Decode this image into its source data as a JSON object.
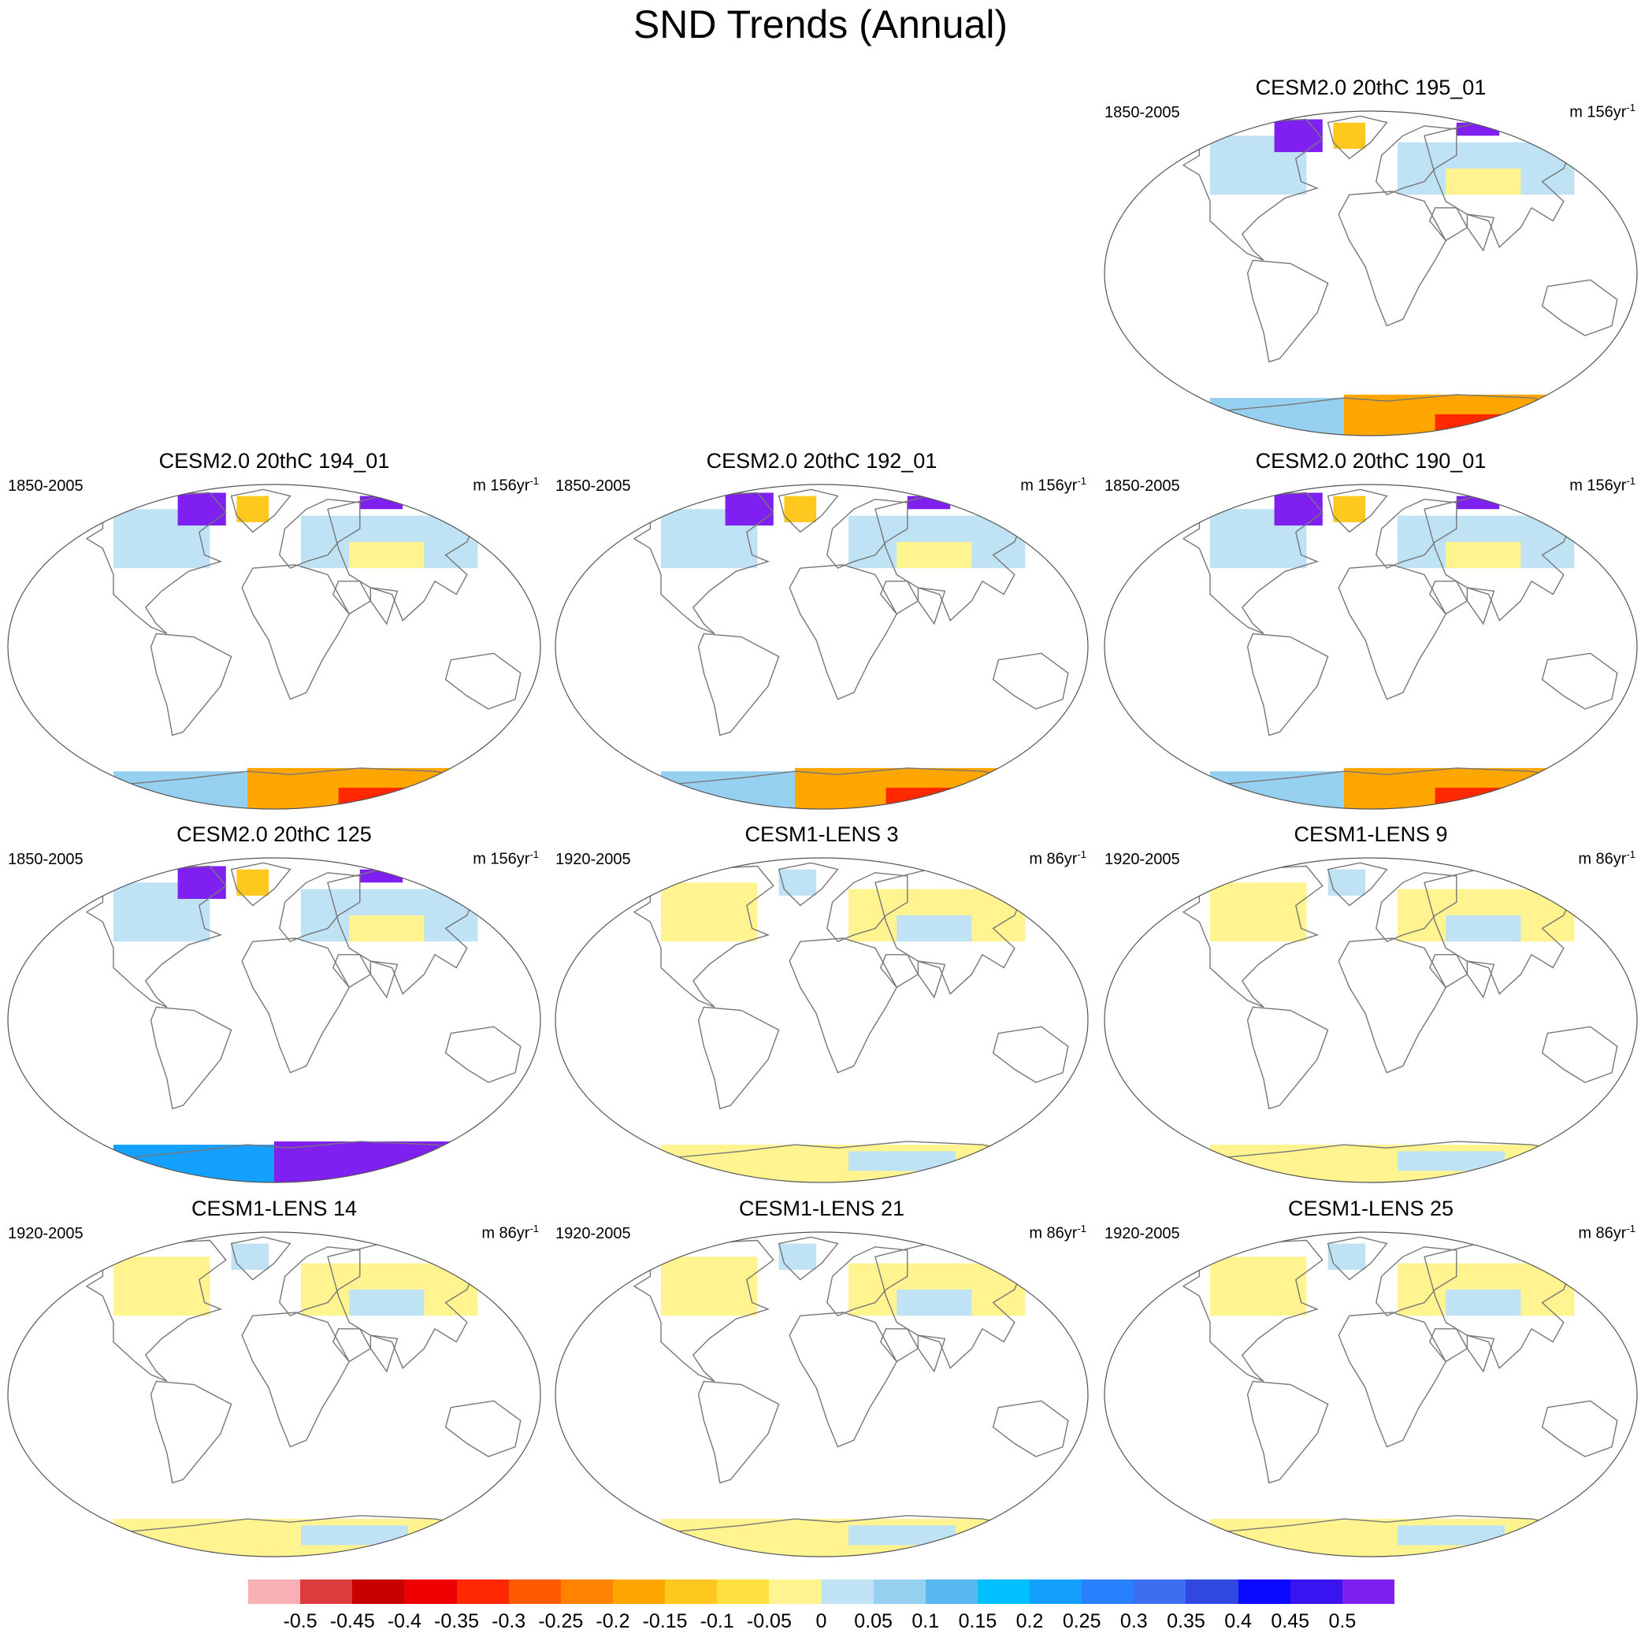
{
  "title": "SND Trends (Annual)",
  "panels": [
    {
      "title": "CESM2.0 20thC 195_01",
      "period": "1850-2005",
      "units_base": "m 156yr",
      "units_exp": "-1"
    },
    {
      "title": "CESM2.0 20thC 194_01",
      "period": "1850-2005",
      "units_base": "m 156yr",
      "units_exp": "-1"
    },
    {
      "title": "CESM2.0 20thC 192_01",
      "period": "1850-2005",
      "units_base": "m 156yr",
      "units_exp": "-1"
    },
    {
      "title": "CESM2.0 20thC 190_01",
      "period": "1850-2005",
      "units_base": "m 156yr",
      "units_exp": "-1"
    },
    {
      "title": "CESM2.0 20thC 125",
      "period": "1850-2005",
      "units_base": "m 156yr",
      "units_exp": "-1"
    },
    {
      "title": "CESM1-LENS 3",
      "period": "1920-2005",
      "units_base": "m 86yr",
      "units_exp": "-1"
    },
    {
      "title": "CESM1-LENS 9",
      "period": "1920-2005",
      "units_base": "m 86yr",
      "units_exp": "-1"
    },
    {
      "title": "CESM1-LENS 14",
      "period": "1920-2005",
      "units_base": "m 86yr",
      "units_exp": "-1"
    },
    {
      "title": "CESM1-LENS 21",
      "period": "1920-2005",
      "units_base": "m 86yr",
      "units_exp": "-1"
    },
    {
      "title": "CESM1-LENS 25",
      "period": "1920-2005",
      "units_base": "m 86yr",
      "units_exp": "-1"
    }
  ],
  "colorbar": {
    "colors": [
      "#f8b0b4",
      "#dc3c3c",
      "#c80000",
      "#ee0000",
      "#ff2800",
      "#ff5a00",
      "#ff8200",
      "#ffa600",
      "#ffc81e",
      "#ffe040",
      "#fff490",
      "#bfe2f4",
      "#96d0f0",
      "#5ab8f0",
      "#00c0ff",
      "#14a0ff",
      "#2880ff",
      "#3c6ef0",
      "#3048e0",
      "#0a0aff",
      "#3a14f0",
      "#8020f0"
    ],
    "labels": [
      "-0.5",
      "-0.45",
      "-0.4",
      "-0.35",
      "-0.3",
      "-0.25",
      "-0.2",
      "-0.15",
      "-0.1",
      "-0.05",
      "0",
      "0.05",
      "0.1",
      "0.15",
      "0.2",
      "0.25",
      "0.3",
      "0.35",
      "0.4",
      "0.45",
      "0.5"
    ]
  }
}
